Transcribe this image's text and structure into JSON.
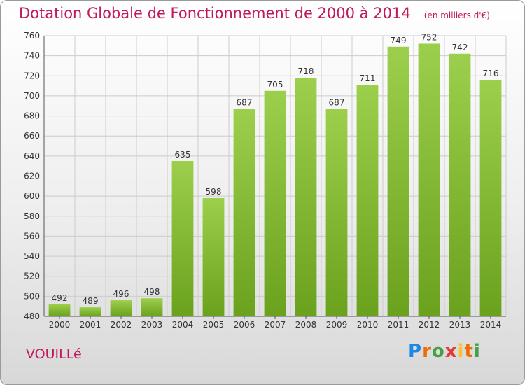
{
  "header": {
    "title": "Dotation Globale de Fonctionnement de 2000 à 2014",
    "unit": "(en milliers d'€)"
  },
  "commune": "VOUILLé",
  "logo": {
    "text": "Proxiti",
    "letters": [
      "P",
      "r",
      "o",
      "x",
      "i",
      "t",
      "i"
    ]
  },
  "colors": {
    "title": "#c2185b",
    "bar_light": "#9ccf4c",
    "bar_dark": "#6aa11d",
    "grid": "#cccccc"
  },
  "chart_data": {
    "type": "bar",
    "title": "Dotation Globale de Fonctionnement de 2000 à 2014",
    "subtitle": "(en milliers d'€)",
    "categories": [
      "2000",
      "2001",
      "2002",
      "2003",
      "2004",
      "2005",
      "2006",
      "2007",
      "2008",
      "2009",
      "2010",
      "2011",
      "2012",
      "2013",
      "2014"
    ],
    "values": [
      492,
      489,
      496,
      498,
      635,
      598,
      687,
      705,
      718,
      687,
      711,
      749,
      752,
      742,
      716
    ],
    "ylim": [
      480,
      760
    ],
    "yticks": [
      480,
      500,
      520,
      540,
      560,
      580,
      600,
      620,
      640,
      660,
      680,
      700,
      720,
      740,
      760
    ],
    "grid": true,
    "data_labels": true
  }
}
